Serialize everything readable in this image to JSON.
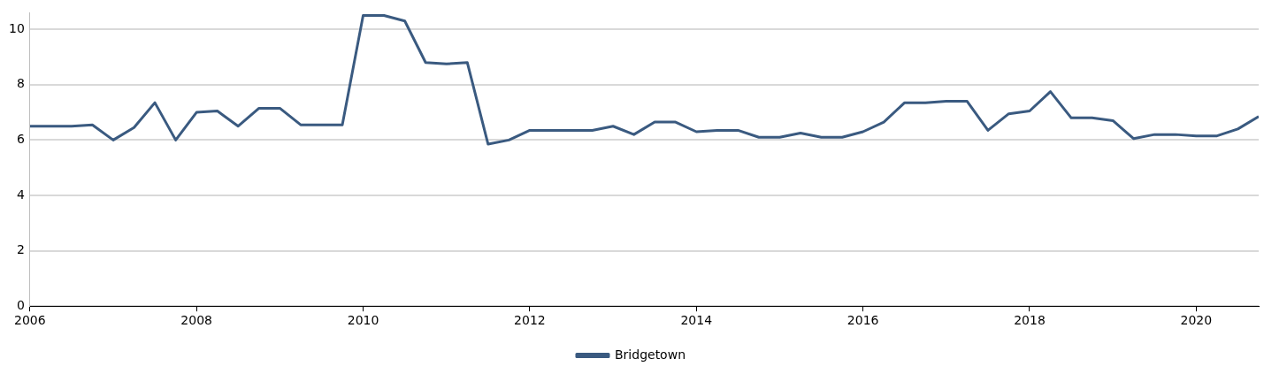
{
  "chart_data": {
    "type": "line",
    "x": [
      2006,
      2006.25,
      2006.5,
      2006.75,
      2007,
      2007.25,
      2007.5,
      2007.75,
      2008,
      2008.25,
      2008.5,
      2008.75,
      2009,
      2009.25,
      2009.5,
      2009.75,
      2010,
      2010.25,
      2010.5,
      2010.75,
      2011,
      2011.25,
      2011.5,
      2011.75,
      2012,
      2012.25,
      2012.5,
      2012.75,
      2013,
      2013.25,
      2013.5,
      2013.75,
      2014,
      2014.25,
      2014.5,
      2014.75,
      2015,
      2015.25,
      2015.5,
      2015.75,
      2016,
      2016.25,
      2016.5,
      2016.75,
      2017,
      2017.25,
      2017.5,
      2017.75,
      2018,
      2018.25,
      2018.5,
      2018.75,
      2019,
      2019.25,
      2019.5,
      2019.75,
      2020,
      2020.25,
      2020.5,
      2020.75
    ],
    "series": [
      {
        "name": "Bridgetown",
        "color": "#3a5a80",
        "values": [
          6.5,
          6.5,
          6.5,
          6.55,
          6.0,
          6.45,
          7.35,
          6.0,
          7.0,
          7.05,
          6.5,
          7.15,
          7.15,
          6.55,
          6.55,
          6.55,
          10.5,
          10.5,
          10.3,
          8.8,
          8.75,
          8.8,
          5.85,
          6.0,
          6.35,
          6.35,
          6.35,
          6.35,
          6.5,
          6.2,
          6.65,
          6.65,
          6.3,
          6.35,
          6.35,
          6.1,
          6.1,
          6.25,
          6.1,
          6.1,
          6.3,
          6.65,
          7.35,
          7.35,
          7.4,
          7.4,
          6.35,
          6.95,
          7.05,
          7.75,
          6.8,
          6.8,
          6.7,
          6.05,
          6.2,
          6.2,
          6.15,
          6.15,
          6.4,
          6.85
        ]
      }
    ],
    "xlim": [
      2006,
      2020.75
    ],
    "xticks": [
      2006,
      2008,
      2010,
      2012,
      2014,
      2016,
      2018,
      2020
    ],
    "ylim": [
      0,
      10.6
    ],
    "yticks": [
      0,
      2,
      4,
      6,
      8,
      10
    ],
    "grid": "y",
    "legend": "bottom",
    "marker": "none",
    "line_style": "solid"
  }
}
